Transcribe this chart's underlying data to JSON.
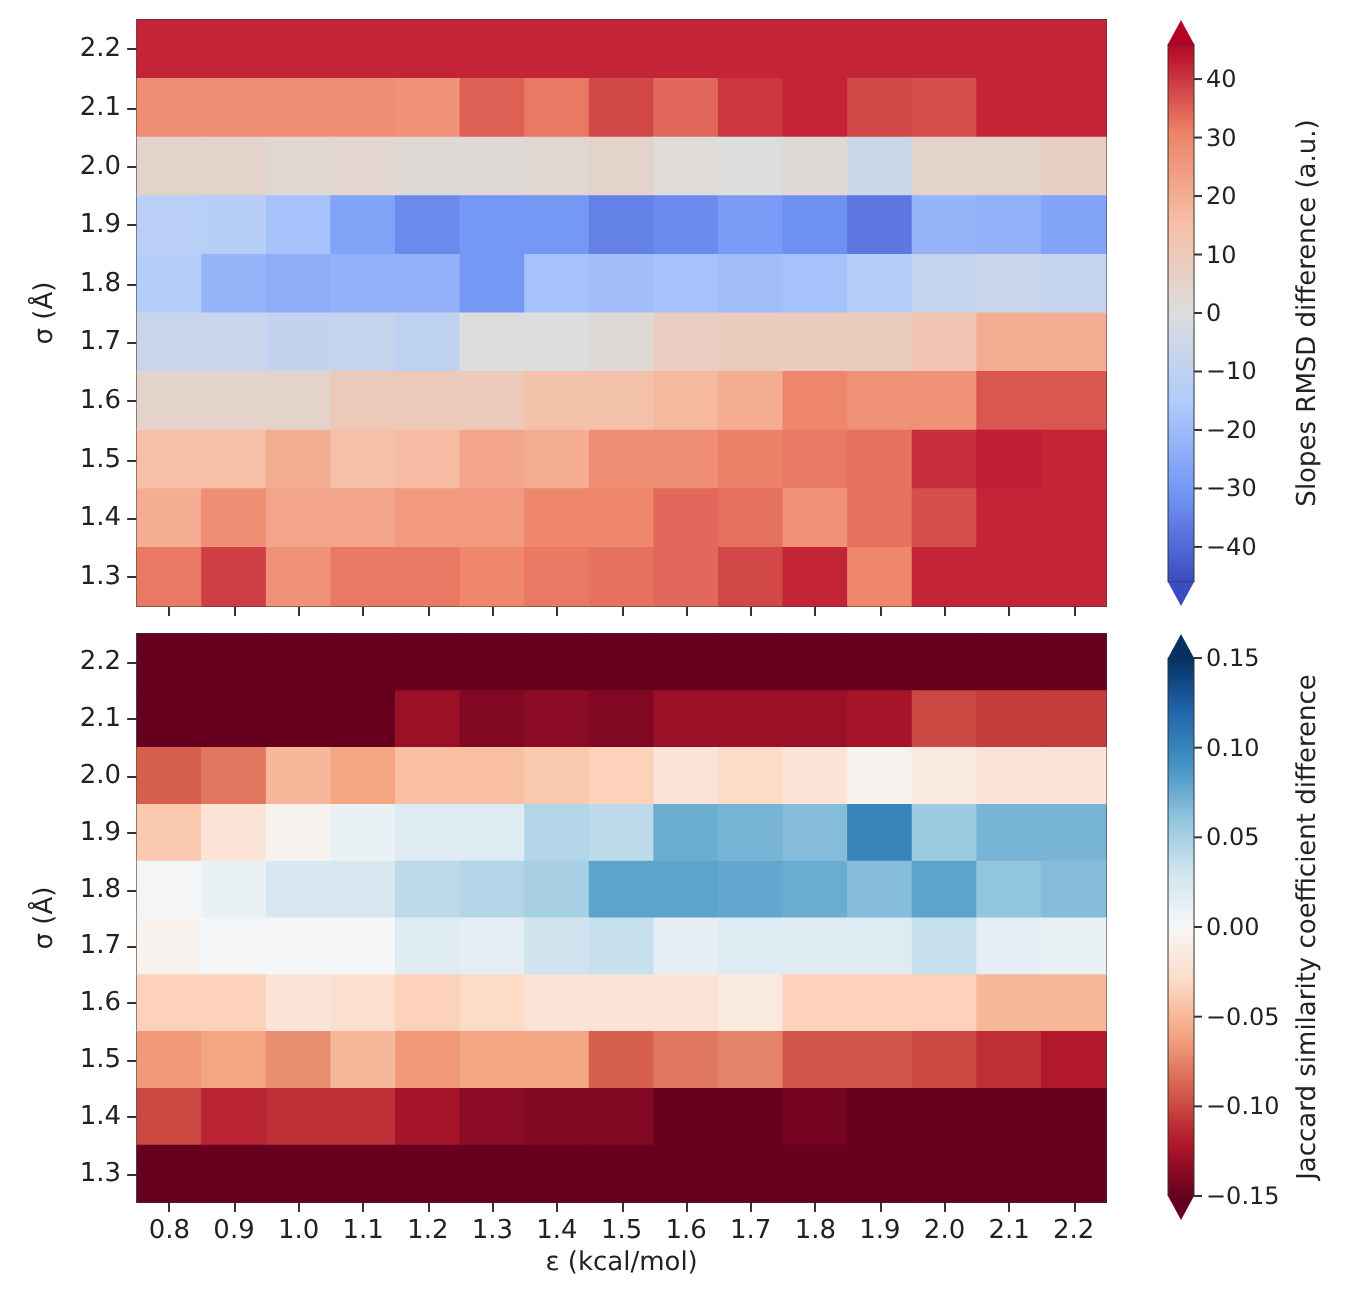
{
  "chart_data": [
    {
      "type": "heatmap",
      "ylabel": "σ (Å)",
      "clabel": "Slopes RMSD difference (a.u.)",
      "tick_labels": "y",
      "categories": [
        "0.8",
        "0.9",
        "1.0",
        "1.1",
        "1.2",
        "1.3",
        "1.4",
        "1.5",
        "1.6",
        "1.7",
        "1.8",
        "1.9",
        "2.0",
        "2.1",
        "2.2"
      ],
      "y_categories": [
        "2.2",
        "2.1",
        "2.0",
        "1.9",
        "1.8",
        "1.7",
        "1.6",
        "1.5",
        "1.4",
        "1.3"
      ],
      "cells": [
        [
          42,
          42,
          42,
          42,
          42,
          42,
          42,
          42,
          42,
          42,
          42,
          42,
          42,
          42,
          42
        ],
        [
          28,
          28,
          28,
          28,
          27,
          35,
          32,
          38,
          34,
          40,
          42,
          38,
          37,
          42,
          42
        ],
        [
          5,
          5,
          3,
          4,
          2,
          2,
          3,
          5,
          1,
          0,
          2,
          -6,
          5,
          5,
          7
        ],
        [
          -12,
          -13,
          -18,
          -27,
          -33,
          -30,
          -30,
          -35,
          -33,
          -29,
          -32,
          -37,
          -22,
          -23,
          -27
        ],
        [
          -14,
          -22,
          -24,
          -23,
          -23,
          -30,
          -18,
          -19,
          -18,
          -19,
          -18,
          -14,
          -8,
          -7,
          -8
        ],
        [
          -7,
          -7,
          -9,
          -8,
          -10,
          0,
          0,
          2,
          8,
          9,
          9,
          9,
          12,
          20,
          20
        ],
        [
          5,
          5,
          5,
          10,
          10,
          10,
          14,
          14,
          17,
          20,
          30,
          27,
          27,
          36,
          36
        ],
        [
          15,
          15,
          20,
          15,
          16,
          22,
          20,
          28,
          28,
          31,
          32,
          33,
          41,
          43,
          42
        ],
        [
          20,
          28,
          22,
          22,
          25,
          25,
          30,
          30,
          34,
          33,
          27,
          33,
          37,
          42,
          42
        ],
        [
          32,
          39,
          27,
          32,
          32,
          30,
          32,
          33,
          34,
          38,
          42,
          30,
          42,
          42,
          42
        ]
      ],
      "clim": [
        -46,
        46
      ],
      "cticks": [
        {
          "value": -40,
          "label": "−40"
        },
        {
          "value": -30,
          "label": "−30"
        },
        {
          "value": -20,
          "label": "−20"
        },
        {
          "value": -10,
          "label": "−10"
        },
        0,
        10,
        20,
        30,
        40
      ]
    },
    {
      "type": "heatmap",
      "xlabel": "ε (kcal/mol)",
      "ylabel": "σ (Å)",
      "clabel": "Jaccard similarity coefficient difference",
      "categories": [
        "0.8",
        "0.9",
        "1.0",
        "1.1",
        "1.2",
        "1.3",
        "1.4",
        "1.5",
        "1.6",
        "1.7",
        "1.8",
        "1.9",
        "2.0",
        "2.1",
        "2.2"
      ],
      "y_categories": [
        "2.2",
        "2.1",
        "2.0",
        "1.9",
        "1.8",
        "1.7",
        "1.6",
        "1.5",
        "1.4",
        "1.3"
      ],
      "cells": [
        [
          -0.15,
          -0.15,
          -0.15,
          -0.15,
          -0.15,
          -0.15,
          -0.15,
          -0.15,
          -0.15,
          -0.15,
          -0.15,
          -0.15,
          -0.15,
          -0.15,
          -0.15
        ],
        [
          -0.15,
          -0.15,
          -0.15,
          -0.15,
          -0.13,
          -0.14,
          -0.135,
          -0.14,
          -0.13,
          -0.13,
          -0.13,
          -0.125,
          -0.1,
          -0.105,
          -0.105
        ],
        [
          -0.09,
          -0.08,
          -0.05,
          -0.06,
          -0.045,
          -0.045,
          -0.04,
          -0.035,
          -0.02,
          -0.03,
          -0.02,
          -0.005,
          -0.015,
          -0.02,
          -0.02
        ],
        [
          -0.04,
          -0.02,
          -0.005,
          0.01,
          0.02,
          0.02,
          0.045,
          0.04,
          0.075,
          0.07,
          0.065,
          0.1,
          0.055,
          0.07,
          0.07
        ],
        [
          0.003,
          0.01,
          0.025,
          0.025,
          0.04,
          0.045,
          0.05,
          0.08,
          0.08,
          0.078,
          0.075,
          0.065,
          0.08,
          0.06,
          0.065
        ],
        [
          -0.005,
          0.002,
          0.002,
          0.002,
          0.02,
          0.015,
          0.03,
          0.035,
          0.015,
          0.02,
          0.02,
          0.02,
          0.035,
          0.015,
          0.01
        ],
        [
          -0.035,
          -0.035,
          -0.02,
          -0.025,
          -0.035,
          -0.03,
          -0.02,
          -0.02,
          -0.02,
          -0.015,
          -0.035,
          -0.035,
          -0.035,
          -0.05,
          -0.05
        ],
        [
          -0.065,
          -0.06,
          -0.07,
          -0.05,
          -0.065,
          -0.06,
          -0.06,
          -0.09,
          -0.08,
          -0.075,
          -0.095,
          -0.095,
          -0.1,
          -0.11,
          -0.12
        ],
        [
          -0.1,
          -0.115,
          -0.11,
          -0.11,
          -0.125,
          -0.135,
          -0.14,
          -0.14,
          -0.15,
          -0.15,
          -0.145,
          -0.15,
          -0.15,
          -0.15,
          -0.15
        ],
        [
          -0.15,
          -0.15,
          -0.15,
          -0.15,
          -0.15,
          -0.15,
          -0.15,
          -0.15,
          -0.15,
          -0.15,
          -0.15,
          -0.15,
          -0.15,
          -0.15,
          -0.15
        ]
      ],
      "clim": [
        -0.15,
        0.15
      ],
      "cticks": [
        {
          "value": -0.15,
          "label": "−0.15"
        },
        {
          "value": -0.1,
          "label": "−0.10"
        },
        {
          "value": -0.05,
          "label": "−0.05"
        },
        {
          "value": 0,
          "label": "0.00"
        },
        {
          "value": 0.05,
          "label": "0.05"
        },
        {
          "value": 0.1,
          "label": "0.10"
        },
        {
          "value": 0.15,
          "label": "0.15"
        }
      ]
    }
  ]
}
